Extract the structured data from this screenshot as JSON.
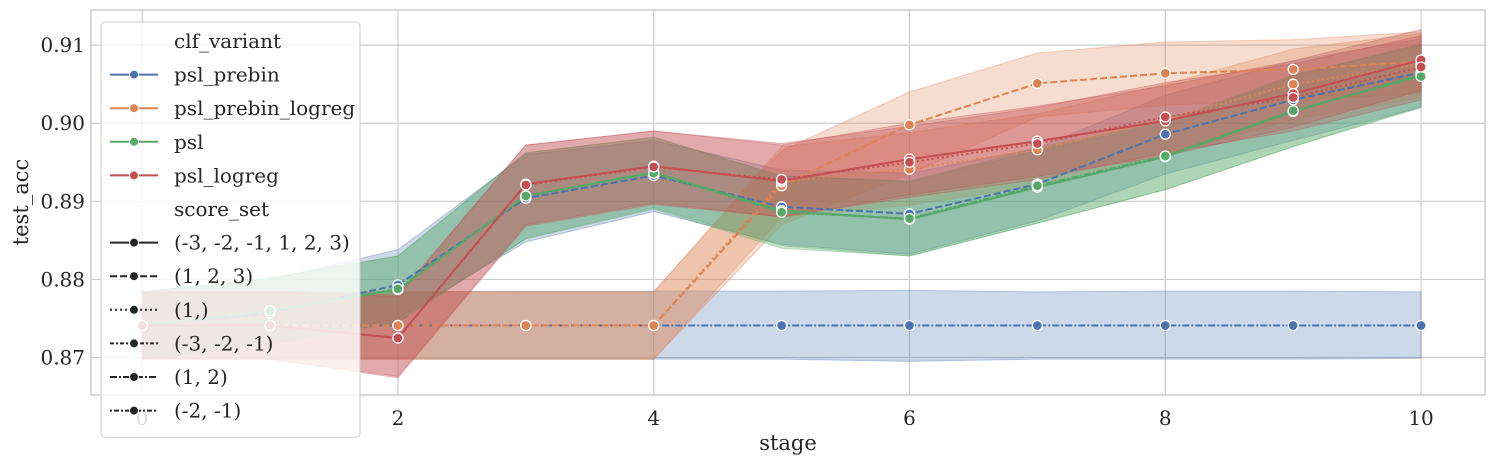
{
  "chart_data": {
    "type": "line",
    "xlabel": "stage",
    "ylabel": "test_acc",
    "xlim": [
      -0.4,
      10.5
    ],
    "ylim": [
      0.8652,
      0.9145
    ],
    "x_ticks": [
      0,
      2,
      4,
      6,
      8,
      10
    ],
    "x_tick_labels": [
      "0",
      "2",
      "4",
      "6",
      "8",
      "10"
    ],
    "y_ticks": [
      0.87,
      0.88,
      0.89,
      0.9,
      0.91
    ],
    "y_tick_labels": [
      "0.87",
      "0.88",
      "0.89",
      "0.90",
      "0.91"
    ],
    "grid": true,
    "legend_position": "upper-left",
    "colors": {
      "psl_prebin": "#4c72b0",
      "psl_prebin_logreg": "#dd8452",
      "psl": "#55a868",
      "psl_logreg": "#c44e52",
      "grid": "#cccccc",
      "axes_edge": "#cccccc",
      "text": "#262626"
    },
    "legend": {
      "hue_title": "clf_variant",
      "hue_entries": [
        "psl_prebin",
        "psl_prebin_logreg",
        "psl",
        "psl_logreg"
      ],
      "style_title": "score_set",
      "style_entries": [
        "(-3, -2, -1, 1, 2, 3)",
        "(1, 2, 3)",
        "(1,)",
        "(-3, -2, -1)",
        "(1, 2)",
        "(-2, -1)"
      ]
    },
    "series": [
      {
        "hue": "psl_prebin",
        "style": "(1, 2)",
        "x": [
          0,
          1,
          2,
          3,
          4,
          5,
          6,
          7,
          8,
          9,
          10
        ],
        "y": [
          0.8741,
          0.8741,
          0.8741,
          0.8741,
          0.8741,
          0.8741,
          0.8741,
          0.8741,
          0.8741,
          0.8741,
          0.8741
        ],
        "lower": [
          0.8698,
          0.8698,
          0.8698,
          0.8698,
          0.8698,
          0.8698,
          0.8695,
          0.8698,
          0.8698,
          0.8698,
          0.8699
        ],
        "upper": [
          0.8784,
          0.8784,
          0.8784,
          0.8785,
          0.8785,
          0.8785,
          0.8786,
          0.8784,
          0.8785,
          0.8785,
          0.8784
        ]
      },
      {
        "hue": "psl_prebin",
        "style": "(1, 2, 3)",
        "x": [
          0,
          1,
          2,
          3,
          4,
          5,
          6,
          7,
          8,
          9,
          10
        ],
        "y": [
          0.8741,
          0.8757,
          0.8793,
          0.8904,
          0.8933,
          0.8893,
          0.8884,
          0.8922,
          0.8986,
          0.903,
          0.9065
        ],
        "lower": [
          0.8698,
          0.8716,
          0.875,
          0.8848,
          0.8887,
          0.8845,
          0.8832,
          0.8875,
          0.8935,
          0.8978,
          0.902
        ],
        "upper": [
          0.8784,
          0.88,
          0.8838,
          0.896,
          0.8978,
          0.894,
          0.8936,
          0.8968,
          0.9036,
          0.908,
          0.9108
        ]
      },
      {
        "hue": "psl_prebin_logreg",
        "style": "(1, 2, 3)",
        "x": [
          0,
          1,
          2,
          3,
          4,
          5,
          6,
          7,
          8,
          9,
          10
        ],
        "y": [
          0.8741,
          0.8741,
          0.8741,
          0.8741,
          0.8741,
          0.892,
          0.8998,
          0.9051,
          0.9064,
          0.9069,
          0.9079
        ],
        "lower": [
          0.8698,
          0.8698,
          0.8698,
          0.8698,
          0.8698,
          0.887,
          0.8935,
          0.9008,
          0.9023,
          0.903,
          0.9038
        ],
        "upper": [
          0.8784,
          0.8784,
          0.8784,
          0.8784,
          0.8784,
          0.8965,
          0.904,
          0.909,
          0.9104,
          0.9107,
          0.9117
        ]
      },
      {
        "hue": "psl_prebin_logreg",
        "style": "(1,)",
        "x": [
          0,
          1,
          2,
          3,
          4,
          5,
          6,
          7,
          8,
          9,
          10
        ],
        "y": [
          0.8741,
          0.8741,
          0.8741,
          0.8741,
          0.8741,
          0.8925,
          0.8941,
          0.8966,
          0.9005,
          0.905,
          0.9076
        ],
        "lower": [
          0.8698,
          0.8698,
          0.8698,
          0.8698,
          0.8698,
          0.888,
          0.8895,
          0.892,
          0.896,
          0.9005,
          0.9033
        ],
        "upper": [
          0.8784,
          0.8784,
          0.8784,
          0.8784,
          0.8784,
          0.897,
          0.8988,
          0.9012,
          0.905,
          0.9095,
          0.9115
        ]
      },
      {
        "hue": "psl",
        "style": "(-3, -2, -1, 1, 2, 3)",
        "x": [
          0,
          1,
          2,
          3,
          4,
          5,
          6,
          7,
          8,
          9,
          10
        ],
        "y": [
          0.8741,
          0.876,
          0.8787,
          0.8907,
          0.8937,
          0.8888,
          0.8877,
          0.8918,
          0.8957,
          0.9015,
          0.9062
        ],
        "lower": [
          0.8698,
          0.8718,
          0.8745,
          0.8852,
          0.8892,
          0.8843,
          0.883,
          0.8872,
          0.8915,
          0.897,
          0.9022
        ],
        "upper": [
          0.8784,
          0.8802,
          0.883,
          0.8962,
          0.8982,
          0.8933,
          0.8925,
          0.8965,
          0.9,
          0.906,
          0.9102
        ]
      },
      {
        "hue": "psl",
        "style": "(1, 2)",
        "x": [
          0,
          1,
          2,
          3,
          4,
          5,
          6,
          7,
          8,
          9,
          10
        ],
        "y": [
          0.8741,
          0.876,
          0.8788,
          0.8907,
          0.8936,
          0.8886,
          0.8878,
          0.892,
          0.8958,
          0.9016,
          0.906
        ],
        "lower": [
          0.8698,
          0.8718,
          0.8745,
          0.8852,
          0.889,
          0.884,
          0.883,
          0.8872,
          0.8915,
          0.897,
          0.902
        ],
        "upper": [
          0.8784,
          0.8802,
          0.883,
          0.8962,
          0.8982,
          0.8932,
          0.8926,
          0.8968,
          0.9002,
          0.9062,
          0.91
        ]
      },
      {
        "hue": "psl_logreg",
        "style": "(-3, -2, -1, 1, 2, 3)",
        "x": [
          0,
          1,
          2,
          3,
          4,
          5,
          6,
          7,
          8,
          9,
          10
        ],
        "y": [
          0.8741,
          0.8741,
          0.8725,
          0.8922,
          0.8945,
          0.8926,
          0.8954,
          0.8977,
          0.9003,
          0.9038,
          0.9081
        ],
        "lower": [
          0.8698,
          0.8698,
          0.8676,
          0.887,
          0.8898,
          0.888,
          0.8908,
          0.8932,
          0.8958,
          0.8995,
          0.9042
        ],
        "upper": [
          0.8784,
          0.8784,
          0.878,
          0.8972,
          0.899,
          0.8972,
          0.9,
          0.9022,
          0.9048,
          0.908,
          0.912
        ]
      },
      {
        "hue": "psl_logreg",
        "style": "(1,)",
        "x": [
          0,
          1,
          2,
          3,
          4,
          5,
          6,
          7,
          8,
          9,
          10
        ],
        "y": [
          0.8741,
          0.8741,
          0.8725,
          0.8921,
          0.8944,
          0.8928,
          0.895,
          0.8974,
          0.9008,
          0.9033,
          0.9072
        ],
        "lower": [
          0.8698,
          0.8698,
          0.8674,
          0.8868,
          0.8896,
          0.888,
          0.8905,
          0.8928,
          0.8962,
          0.899,
          0.903
        ],
        "upper": [
          0.8784,
          0.8784,
          0.8778,
          0.8972,
          0.899,
          0.8974,
          0.8996,
          0.902,
          0.9052,
          0.9076,
          0.9112
        ]
      }
    ]
  }
}
